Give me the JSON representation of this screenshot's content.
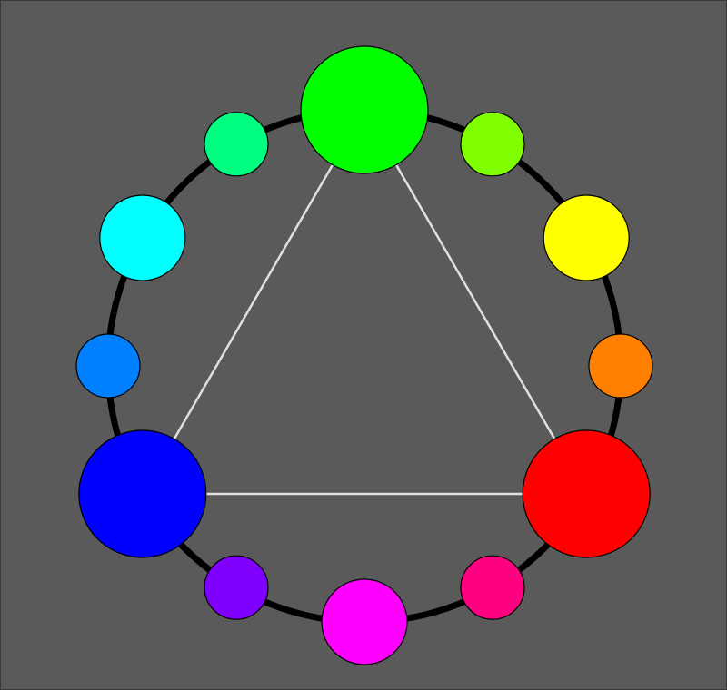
{
  "background_color": "#5a5a5a",
  "ring_color": "#000000",
  "triangle_color": "#e0e0e0",
  "swatches": [
    {
      "name": "green",
      "color": "#00ff00",
      "tier": "primary"
    },
    {
      "name": "chartreuse",
      "color": "#80ff00",
      "tier": "tertiary"
    },
    {
      "name": "yellow",
      "color": "#ffff00",
      "tier": "secondary"
    },
    {
      "name": "orange",
      "color": "#ff8000",
      "tier": "tertiary"
    },
    {
      "name": "red",
      "color": "#ff0000",
      "tier": "primary"
    },
    {
      "name": "rose",
      "color": "#ff0080",
      "tier": "tertiary"
    },
    {
      "name": "magenta",
      "color": "#ff00ff",
      "tier": "secondary"
    },
    {
      "name": "violet",
      "color": "#8000ff",
      "tier": "tertiary"
    },
    {
      "name": "blue",
      "color": "#0000ff",
      "tier": "primary"
    },
    {
      "name": "azure",
      "color": "#0080ff",
      "tier": "tertiary"
    },
    {
      "name": "cyan",
      "color": "#00ffff",
      "tier": "secondary"
    },
    {
      "name": "spring-green",
      "color": "#00ff80",
      "tier": "tertiary"
    }
  ],
  "triangle_vertices": [
    "green",
    "red",
    "blue"
  ]
}
